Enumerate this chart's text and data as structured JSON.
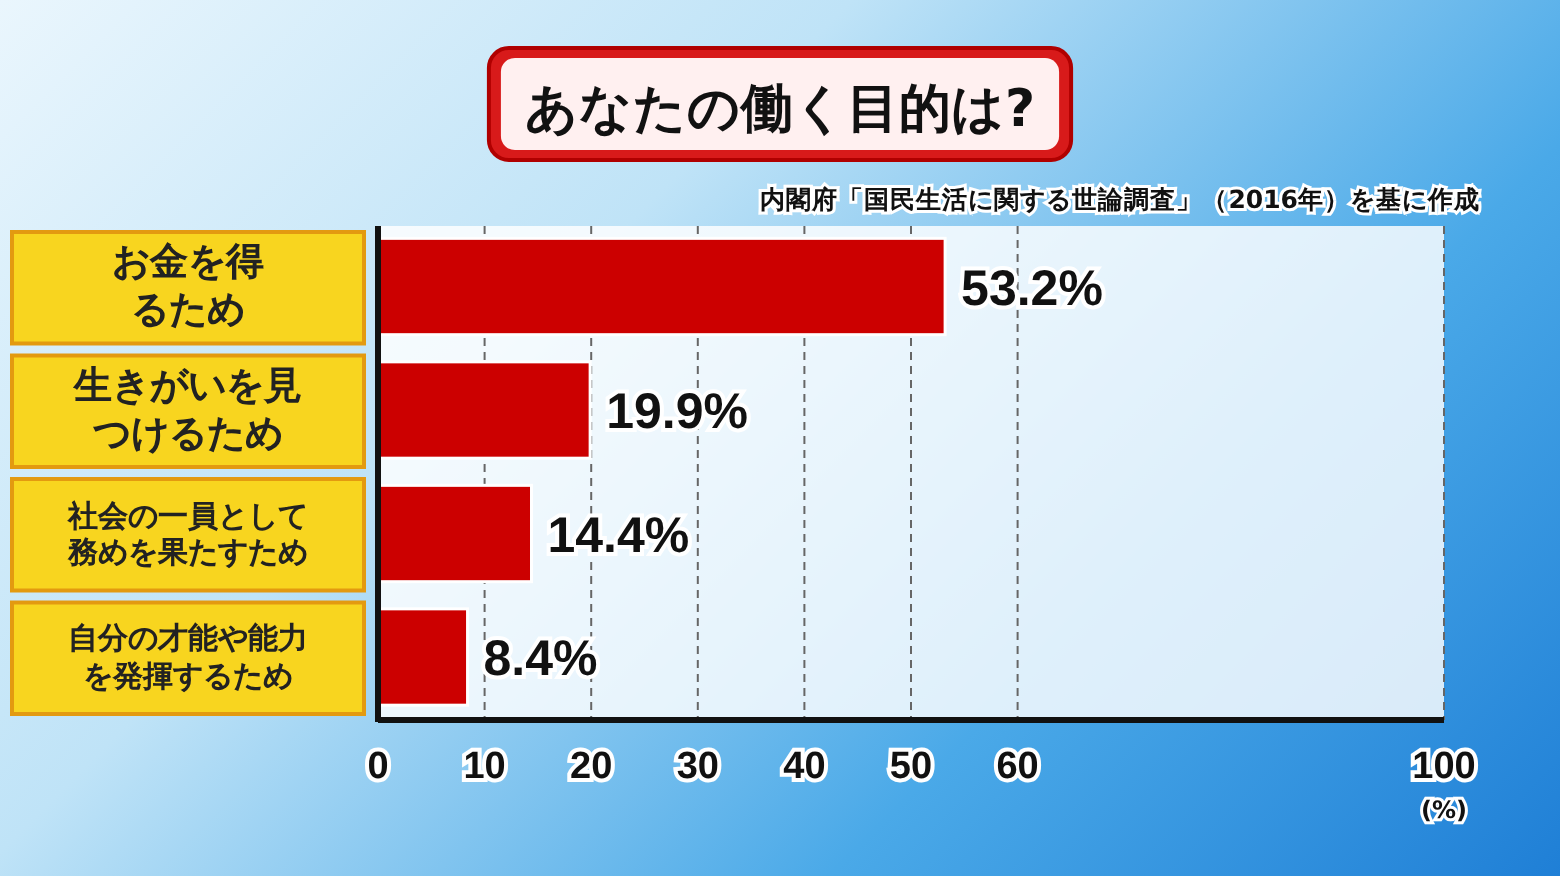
{
  "chart_data": {
    "type": "bar",
    "orientation": "horizontal",
    "title": "あなたの働く目的は?",
    "subtitle": "内閣府「国民生活に関する世論調査」（2016年）を基に作成",
    "categories": [
      "お金を得るため",
      "生きがいを見つけるため",
      "社会の一員として務めを果たすため",
      "自分の才能や能力を発揮するため"
    ],
    "values": [
      53.2,
      19.9,
      14.4,
      8.4
    ],
    "value_labels": [
      "53.2%",
      "19.9%",
      "14.4%",
      "8.4%"
    ],
    "color": "#cc0000",
    "xlim": [
      0,
      100
    ],
    "xticks": [
      0,
      10,
      20,
      30,
      40,
      50,
      60,
      100
    ],
    "xlabel": "(%)",
    "grid": "x"
  }
}
